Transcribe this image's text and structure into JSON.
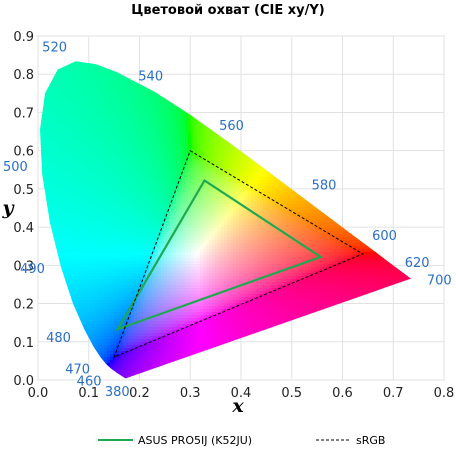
{
  "chart_data": {
    "type": "scatter",
    "title": "Цветовой охват (CIE xy/Y)",
    "xlabel": "x",
    "ylabel": "y",
    "xlim": [
      0.0,
      0.8
    ],
    "ylim": [
      0.0,
      0.9
    ],
    "x_ticks": [
      "0.0",
      "0.1",
      "0.2",
      "0.3",
      "0.4",
      "0.5",
      "0.6",
      "0.7",
      "0.8"
    ],
    "y_ticks": [
      "0.0",
      "0.1",
      "0.2",
      "0.3",
      "0.4",
      "0.5",
      "0.6",
      "0.7",
      "0.8",
      "0.9"
    ],
    "grid": true,
    "legend_position": "bottom",
    "spectral_locus": [
      {
        "nm": 380,
        "x": 0.1741,
        "y": 0.005
      },
      {
        "nm": 420,
        "x": 0.1714,
        "y": 0.0051
      },
      {
        "nm": 440,
        "x": 0.1644,
        "y": 0.0109
      },
      {
        "nm": 450,
        "x": 0.1566,
        "y": 0.0177
      },
      {
        "nm": 460,
        "x": 0.144,
        "y": 0.0297
      },
      {
        "nm": 465,
        "x": 0.1355,
        "y": 0.0399
      },
      {
        "nm": 470,
        "x": 0.1241,
        "y": 0.0578
      },
      {
        "nm": 475,
        "x": 0.1096,
        "y": 0.0868
      },
      {
        "nm": 480,
        "x": 0.0913,
        "y": 0.1327
      },
      {
        "nm": 485,
        "x": 0.0687,
        "y": 0.2007
      },
      {
        "nm": 490,
        "x": 0.0454,
        "y": 0.295
      },
      {
        "nm": 495,
        "x": 0.0235,
        "y": 0.4127
      },
      {
        "nm": 500,
        "x": 0.0082,
        "y": 0.5384
      },
      {
        "nm": 505,
        "x": 0.0039,
        "y": 0.6548
      },
      {
        "nm": 510,
        "x": 0.0139,
        "y": 0.7502
      },
      {
        "nm": 515,
        "x": 0.0389,
        "y": 0.812
      },
      {
        "nm": 520,
        "x": 0.0743,
        "y": 0.8338
      },
      {
        "nm": 525,
        "x": 0.1142,
        "y": 0.8262
      },
      {
        "nm": 530,
        "x": 0.1547,
        "y": 0.8059
      },
      {
        "nm": 540,
        "x": 0.2296,
        "y": 0.7543
      },
      {
        "nm": 550,
        "x": 0.3016,
        "y": 0.6923
      },
      {
        "nm": 560,
        "x": 0.3731,
        "y": 0.6245
      },
      {
        "nm": 570,
        "x": 0.4441,
        "y": 0.5547
      },
      {
        "nm": 580,
        "x": 0.5125,
        "y": 0.4866
      },
      {
        "nm": 590,
        "x": 0.5752,
        "y": 0.4242
      },
      {
        "nm": 600,
        "x": 0.627,
        "y": 0.3725
      },
      {
        "nm": 610,
        "x": 0.6658,
        "y": 0.334
      },
      {
        "nm": 620,
        "x": 0.6915,
        "y": 0.3083
      },
      {
        "nm": 640,
        "x": 0.719,
        "y": 0.2809
      },
      {
        "nm": 700,
        "x": 0.7347,
        "y": 0.2653
      }
    ],
    "wavelength_labels": [
      {
        "text": "380",
        "x": 0.172,
        "y": 0.005
      },
      {
        "text": "460",
        "x": 0.144,
        "y": 0.03
      },
      {
        "text": "470",
        "x": 0.124,
        "y": 0.058
      },
      {
        "text": "480",
        "x": 0.091,
        "y": 0.133
      },
      {
        "text": "490",
        "x": 0.045,
        "y": 0.295
      },
      {
        "text": "500",
        "x": 0.008,
        "y": 0.538
      },
      {
        "text": "520",
        "x": 0.074,
        "y": 0.834
      },
      {
        "text": "540",
        "x": 0.23,
        "y": 0.754
      },
      {
        "text": "560",
        "x": 0.373,
        "y": 0.624
      },
      {
        "text": "580",
        "x": 0.512,
        "y": 0.487
      },
      {
        "text": "600",
        "x": 0.627,
        "y": 0.373
      },
      {
        "text": "620",
        "x": 0.691,
        "y": 0.308
      },
      {
        "text": "700",
        "x": 0.735,
        "y": 0.265
      }
    ],
    "series": [
      {
        "name": "ASUS PRO5IJ (K52JU)",
        "style": "solid",
        "color": "#1ea850",
        "points": [
          {
            "x": 0.328,
            "y": 0.522
          },
          {
            "x": 0.557,
            "y": 0.322
          },
          {
            "x": 0.157,
            "y": 0.133
          }
        ]
      },
      {
        "name": "sRGB",
        "style": "dashed",
        "color": "#000000",
        "points": [
          {
            "x": 0.3,
            "y": 0.6
          },
          {
            "x": 0.64,
            "y": 0.33
          },
          {
            "x": 0.15,
            "y": 0.06
          }
        ]
      }
    ]
  }
}
